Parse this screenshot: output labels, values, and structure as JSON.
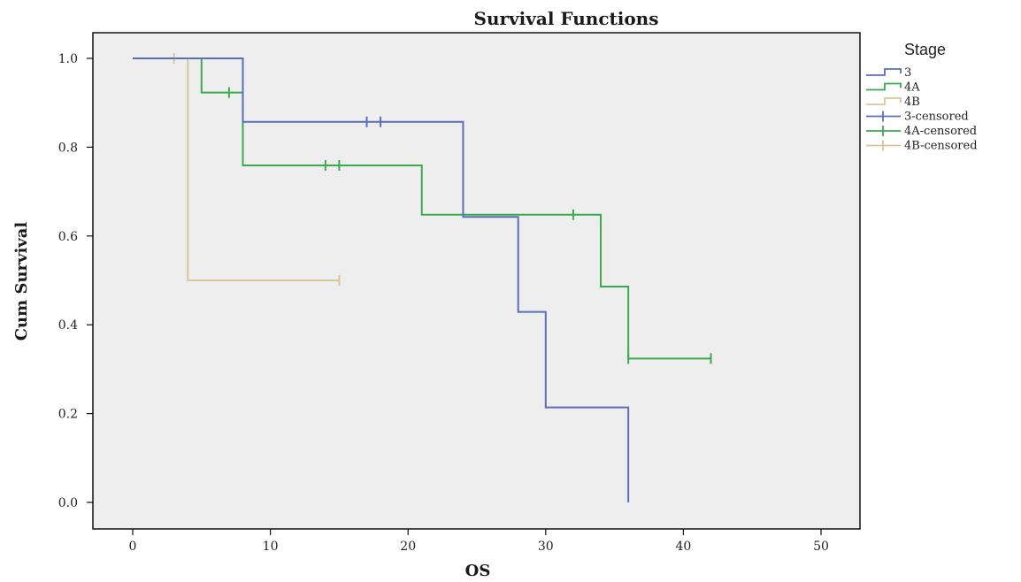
{
  "chart_data": {
    "type": "line",
    "subtype": "kaplan-meier-step",
    "title": "Survival Functions",
    "xlabel": "OS",
    "ylabel": "Cum Survival",
    "xlim": [
      0,
      50
    ],
    "ylim": [
      0,
      1
    ],
    "xticks": [
      "0",
      "10",
      "20",
      "30",
      "40",
      "50"
    ],
    "yticks": [
      "0.0",
      "0.2",
      "0.4",
      "0.6",
      "0.8",
      "1.0"
    ],
    "grid": false,
    "legend": {
      "title": "Stage",
      "position": "right",
      "entries": [
        "3",
        "4A",
        "4B",
        "3-censored",
        "4A-censored",
        "4B-censored"
      ]
    },
    "series": [
      {
        "name": "3",
        "color": "#5a6fb8",
        "steps": [
          [
            0,
            1.0
          ],
          [
            8,
            0.857
          ],
          [
            24,
            0.643
          ],
          [
            28,
            0.429
          ],
          [
            30,
            0.214
          ],
          [
            36,
            0.0
          ]
        ],
        "end_x": 36,
        "censored": [
          [
            17,
            0.857
          ],
          [
            18,
            0.857
          ]
        ]
      },
      {
        "name": "4A",
        "color": "#3aaa4e",
        "steps": [
          [
            0,
            1.0
          ],
          [
            5,
            0.923
          ],
          [
            8,
            0.759
          ],
          [
            21,
            0.648
          ],
          [
            34,
            0.486
          ],
          [
            36,
            0.324
          ]
        ],
        "end_x": 42,
        "censored": [
          [
            7,
            0.923
          ],
          [
            14,
            0.759
          ],
          [
            15,
            0.759
          ],
          [
            32,
            0.648
          ],
          [
            36,
            0.324
          ],
          [
            42,
            0.324
          ]
        ]
      },
      {
        "name": "4B",
        "color": "#d9c79a",
        "steps": [
          [
            0,
            1.0
          ],
          [
            4,
            0.5
          ]
        ],
        "end_x": 15,
        "censored": [
          [
            3,
            1.0
          ],
          [
            15,
            0.5
          ]
        ]
      }
    ]
  }
}
